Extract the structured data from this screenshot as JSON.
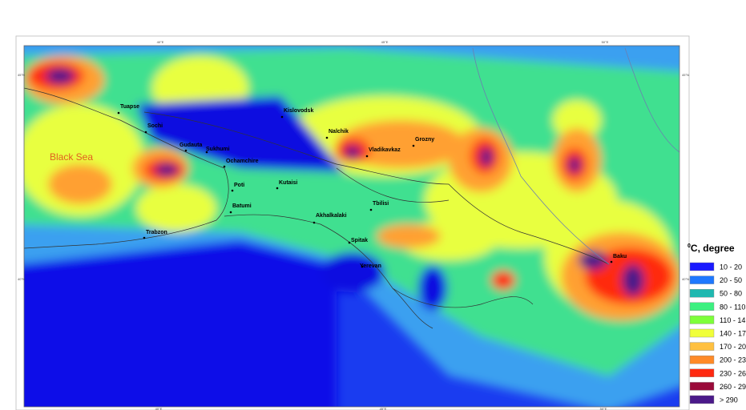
{
  "map": {
    "sea_label": "Black Sea",
    "cities": [
      "Tuapse",
      "Sochi",
      "Gudauta",
      "Sukhumi",
      "Ochamchire",
      "Kislovodsk",
      "Nalchik",
      "Vladikavkaz",
      "Grozny",
      "Poti",
      "Kutaisi",
      "Batumi",
      "Tbilisi",
      "Akhalkalaki",
      "Trabzon",
      "Spitak",
      "Yerevan",
      "Baku"
    ],
    "lon_labels": [
      "40°E",
      "45°E",
      "50°E"
    ],
    "lat_labels": [
      "45°N",
      "40°N"
    ]
  },
  "legend": {
    "title_sup": "0",
    "title": "C, degree",
    "items": [
      {
        "label": "10 - 20",
        "color": "#1a1aff"
      },
      {
        "label": "20 - 50",
        "color": "#1e78ff"
      },
      {
        "label": "50 - 80",
        "color": "#1fb8b0"
      },
      {
        "label": "80 - 110",
        "color": "#3df080"
      },
      {
        "label": "110 - 14",
        "color": "#7dff3a"
      },
      {
        "label": "140 - 17",
        "color": "#f0ff3a"
      },
      {
        "label": "170 - 20",
        "color": "#ffc040"
      },
      {
        "label": "200 - 23",
        "color": "#ff8a28"
      },
      {
        "label": "230 - 26",
        "color": "#ff2a10"
      },
      {
        "label": "260 - 29",
        "color": "#9a0a3a"
      },
      {
        "label": "> 290",
        "color": "#4b1a8a"
      }
    ]
  }
}
